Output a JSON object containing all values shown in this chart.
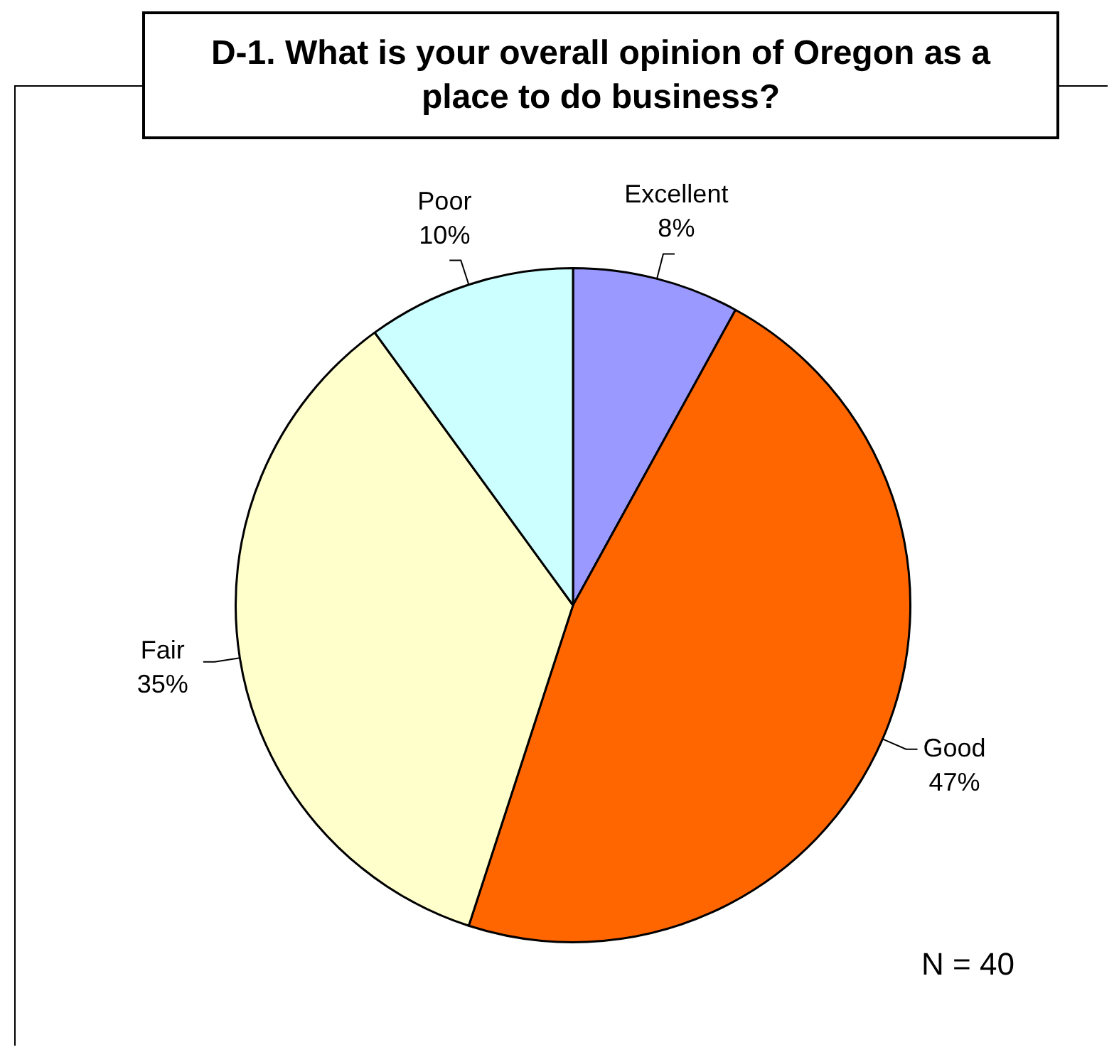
{
  "chart_data": {
    "type": "pie",
    "title": "D-1. What is your overall opinion of Oregon as a place to do business?",
    "categories": [
      "Excellent",
      "Good",
      "Fair",
      "Poor"
    ],
    "values": [
      8,
      47,
      35,
      10
    ],
    "value_labels": [
      "8%",
      "47%",
      "35%",
      "10%"
    ],
    "colors": [
      "#9999ff",
      "#ff6600",
      "#ffffcc",
      "#ccffff"
    ],
    "annotations": [
      "N = 40"
    ]
  }
}
